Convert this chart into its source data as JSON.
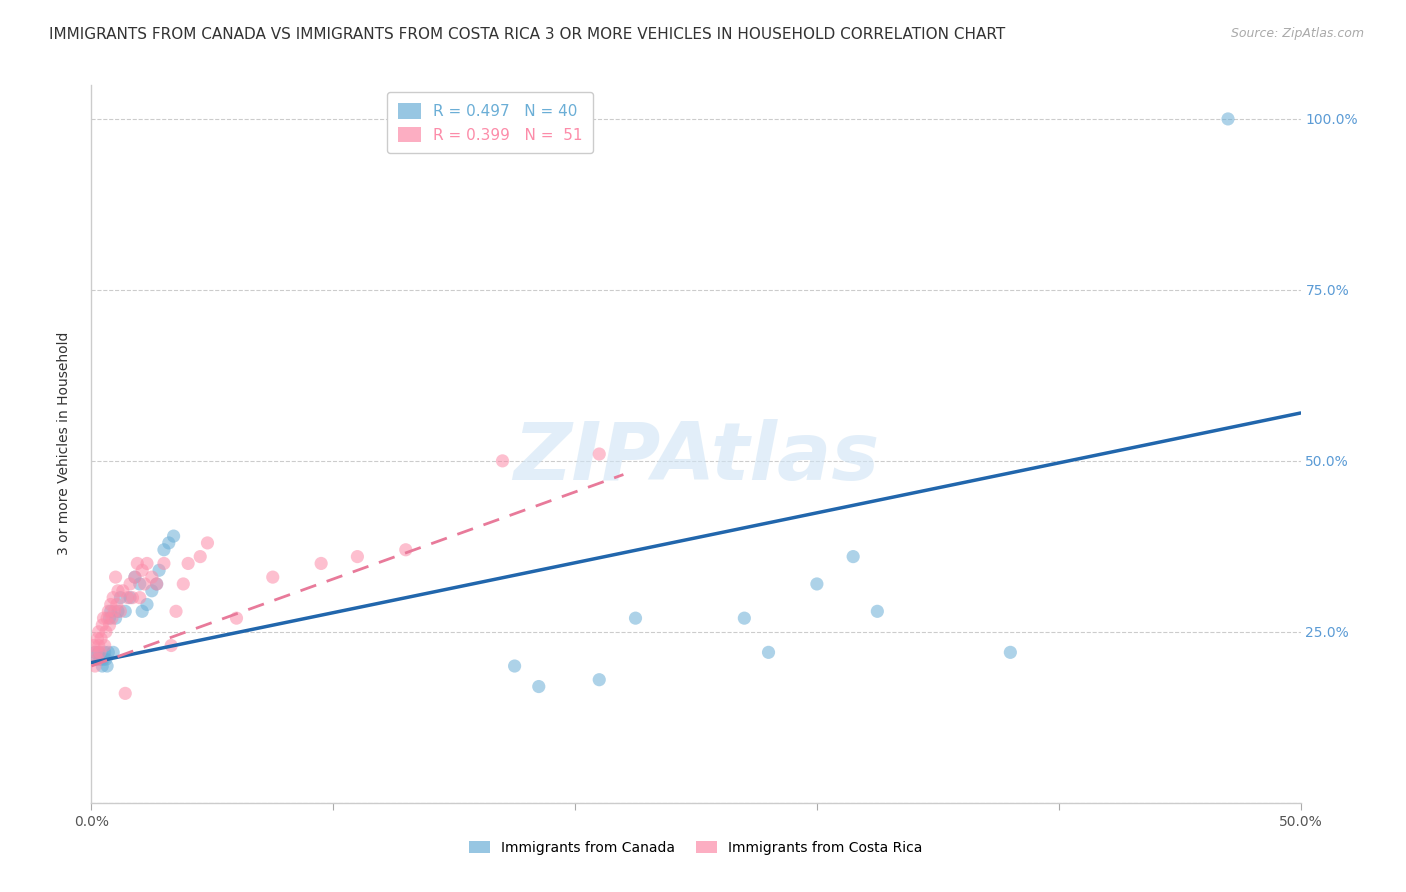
{
  "title": "IMMIGRANTS FROM CANADA VS IMMIGRANTS FROM COSTA RICA 3 OR MORE VEHICLES IN HOUSEHOLD CORRELATION CHART",
  "source": "Source: ZipAtlas.com",
  "ylabel": "3 or more Vehicles in Household",
  "xlim": [
    0.0,
    50.0
  ],
  "ylim": [
    0.0,
    105.0
  ],
  "xtick_positions": [
    0.0,
    10.0,
    20.0,
    30.0,
    40.0,
    50.0
  ],
  "xticklabels": [
    "0.0%",
    "",
    "",
    "",
    "",
    "50.0%"
  ],
  "ytick_positions": [
    0.0,
    25.0,
    50.0,
    75.0,
    100.0
  ],
  "yticklabels_left": [
    "",
    "",
    "",
    "",
    ""
  ],
  "yticklabels_right": [
    "",
    "25.0%",
    "50.0%",
    "75.0%",
    "100.0%"
  ],
  "canada_color": "#6baed6",
  "costa_rica_color": "#fc8ca9",
  "canada_line_color": "#2166ac",
  "costa_rica_line_color": "#e87a9a",
  "canada_R": 0.497,
  "canada_N": 40,
  "costa_rica_R": 0.399,
  "costa_rica_N": 51,
  "canada_x": [
    0.15,
    0.25,
    0.3,
    0.35,
    0.4,
    0.45,
    0.5,
    0.55,
    0.6,
    0.65,
    0.7,
    0.75,
    0.8,
    0.9,
    1.0,
    1.1,
    1.2,
    1.4,
    1.6,
    1.8,
    2.0,
    2.1,
    2.3,
    2.5,
    2.7,
    2.8,
    3.0,
    3.2,
    3.4,
    17.5,
    18.5,
    21.0,
    22.5,
    27.0,
    28.0,
    30.0,
    31.5,
    32.5,
    38.0,
    47.0
  ],
  "canada_y": [
    22.0,
    21.0,
    22.0,
    21.0,
    21.0,
    20.0,
    21.0,
    22.0,
    21.0,
    20.0,
    22.0,
    27.0,
    28.0,
    22.0,
    27.0,
    28.0,
    30.0,
    28.0,
    30.0,
    33.0,
    32.0,
    28.0,
    29.0,
    31.0,
    32.0,
    34.0,
    37.0,
    38.0,
    39.0,
    20.0,
    17.0,
    18.0,
    27.0,
    27.0,
    22.0,
    32.0,
    36.0,
    28.0,
    22.0,
    100.0
  ],
  "costa_rica_x": [
    0.1,
    0.15,
    0.2,
    0.25,
    0.25,
    0.3,
    0.3,
    0.35,
    0.4,
    0.45,
    0.5,
    0.55,
    0.6,
    0.65,
    0.7,
    0.75,
    0.8,
    0.85,
    0.9,
    0.95,
    1.0,
    1.05,
    1.1,
    1.2,
    1.3,
    1.4,
    1.5,
    1.6,
    1.7,
    1.8,
    1.9,
    2.0,
    2.1,
    2.2,
    2.3,
    2.5,
    2.7,
    3.0,
    3.3,
    3.5,
    3.8,
    4.0,
    4.5,
    4.8,
    6.0,
    7.5,
    9.5,
    11.0,
    13.0,
    17.0,
    21.0
  ],
  "costa_rica_y": [
    23.0,
    20.0,
    22.0,
    24.0,
    21.0,
    23.0,
    25.0,
    22.0,
    24.0,
    26.0,
    27.0,
    23.0,
    25.0,
    27.0,
    28.0,
    26.0,
    29.0,
    27.0,
    30.0,
    28.0,
    33.0,
    29.0,
    31.0,
    28.0,
    31.0,
    16.0,
    30.0,
    32.0,
    30.0,
    33.0,
    35.0,
    30.0,
    34.0,
    32.0,
    35.0,
    33.0,
    32.0,
    35.0,
    23.0,
    28.0,
    32.0,
    35.0,
    36.0,
    38.0,
    27.0,
    33.0,
    35.0,
    36.0,
    37.0,
    50.0,
    51.0
  ],
  "canada_line_x": [
    0.0,
    50.0
  ],
  "canada_line_y": [
    20.5,
    57.0
  ],
  "costa_rica_line_x": [
    0.0,
    22.0
  ],
  "costa_rica_line_y": [
    20.0,
    48.0
  ],
  "background_color": "#ffffff",
  "grid_color": "#cccccc",
  "title_fontsize": 11,
  "axis_label_fontsize": 10,
  "tick_fontsize": 10,
  "legend_fontsize": 11,
  "watermark_text": "ZIPAtlas",
  "watermark_color": "#d0e4f5",
  "legend_canada_label": "R = 0.497   N = 40",
  "legend_costa_label": "R = 0.399   N =  51",
  "bottom_legend_canada": "Immigrants from Canada",
  "bottom_legend_costa": "Immigrants from Costa Rica"
}
